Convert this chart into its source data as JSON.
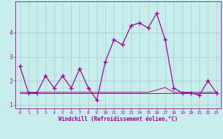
{
  "xlabel": "Windchill (Refroidissement éolien,°C)",
  "x": [
    0,
    1,
    2,
    3,
    4,
    5,
    6,
    7,
    8,
    9,
    10,
    11,
    12,
    13,
    14,
    15,
    16,
    17,
    18,
    19,
    20,
    21,
    22,
    23
  ],
  "y_main": [
    2.6,
    1.5,
    1.5,
    2.2,
    1.7,
    2.2,
    1.7,
    2.5,
    1.7,
    1.2,
    2.8,
    3.7,
    3.5,
    4.3,
    4.4,
    4.2,
    4.8,
    3.7,
    1.7,
    1.5,
    1.5,
    1.4,
    2.0,
    1.5
  ],
  "y_flat1": [
    1.52,
    1.52,
    1.52,
    1.52,
    1.52,
    1.52,
    1.52,
    1.52,
    1.52,
    1.52,
    1.52,
    1.52,
    1.52,
    1.52,
    1.52,
    1.52,
    1.62,
    1.72,
    1.52,
    1.52,
    1.52,
    1.52,
    1.52,
    1.52
  ],
  "y_flat2": [
    1.5,
    1.5,
    1.5,
    1.5,
    1.5,
    1.5,
    1.5,
    1.5,
    1.5,
    1.5,
    1.5,
    1.5,
    1.5,
    1.5,
    1.5,
    1.5,
    1.5,
    1.5,
    1.5,
    1.5,
    1.5,
    1.5,
    1.5,
    1.5
  ],
  "y_flat3": [
    1.48,
    1.48,
    1.48,
    1.48,
    1.48,
    1.48,
    1.48,
    1.48,
    1.48,
    1.48,
    1.48,
    1.48,
    1.48,
    1.48,
    1.48,
    1.48,
    1.48,
    1.48,
    1.48,
    1.48,
    1.48,
    1.48,
    1.48,
    1.48
  ],
  "line_color": "#990099",
  "bg_color": "#c8ecec",
  "grid_color": "#a8d4d4",
  "ylim": [
    0.85,
    5.3
  ],
  "yticks": [
    1,
    2,
    3,
    4
  ],
  "xticks": [
    0,
    1,
    2,
    3,
    4,
    5,
    6,
    7,
    8,
    9,
    10,
    11,
    12,
    13,
    14,
    15,
    16,
    17,
    18,
    19,
    20,
    21,
    22,
    23
  ],
  "marker": "+",
  "linewidth": 0.9,
  "markersize": 4,
  "markeredgewidth": 1.0
}
